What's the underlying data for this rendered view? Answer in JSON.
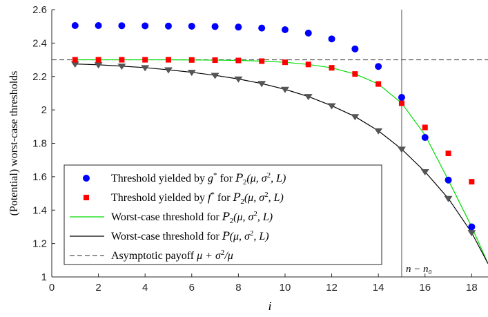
{
  "chart_data": {
    "type": "line",
    "xlabel": "i",
    "ylabel": "(Potential) worst-case thresholds",
    "xlim": [
      0,
      18.7
    ],
    "ylim": [
      1,
      2.6
    ],
    "xticks": [
      "0",
      "2",
      "4",
      "6",
      "8",
      "10",
      "12",
      "14",
      "16",
      "18"
    ],
    "yticks": [
      "1",
      "1.2",
      "1.4",
      "1.6",
      "1.8",
      "2",
      "2.2",
      "2.4",
      "2.6"
    ],
    "grid": false,
    "legend_position": "bottom-left",
    "vline": {
      "x": 15,
      "label": "n − n₀"
    },
    "hline": {
      "y": 2.3
    },
    "series": [
      {
        "name": "Threshold yielded by g* for P₂(μ, σ², L)",
        "marker": "circle",
        "color": "#0000ff",
        "x": [
          1,
          2,
          3,
          4,
          5,
          6,
          7,
          8,
          9,
          10,
          11,
          12,
          13,
          14,
          15,
          16,
          17,
          18
        ],
        "y": [
          2.505,
          2.505,
          2.504,
          2.503,
          2.502,
          2.501,
          2.499,
          2.496,
          2.49,
          2.48,
          2.46,
          2.425,
          2.365,
          2.26,
          2.075,
          1.835,
          1.58,
          1.3
        ]
      },
      {
        "name": "Threshold yielded by f* for P₂(μ, σ², L)",
        "marker": "square",
        "color": "#ff0000",
        "x": [
          1,
          2,
          3,
          4,
          5,
          6,
          7,
          8,
          9,
          10,
          11,
          12,
          13,
          14,
          15,
          16,
          17,
          18
        ],
        "y": [
          2.3,
          2.3,
          2.3,
          2.3,
          2.3,
          2.299,
          2.298,
          2.296,
          2.292,
          2.285,
          2.272,
          2.252,
          2.215,
          2.155,
          2.04,
          1.895,
          1.74,
          1.57
        ]
      },
      {
        "name": "Worst-case threshold for P₂(μ, σ², L)",
        "marker": "none",
        "color": "#00dd00",
        "x": [
          1,
          2,
          3,
          4,
          5,
          6,
          7,
          8,
          9,
          10,
          11,
          12,
          13,
          14,
          15,
          16,
          17,
          18,
          18.7
        ],
        "y": [
          2.3,
          2.3,
          2.3,
          2.3,
          2.3,
          2.299,
          2.298,
          2.296,
          2.292,
          2.285,
          2.272,
          2.252,
          2.215,
          2.155,
          2.04,
          1.85,
          1.58,
          1.3,
          1.08
        ]
      },
      {
        "name": "Worst-case threshold for P(μ, σ², L)",
        "marker": "triangle-down",
        "color": "#000000",
        "marker_color": "#555555",
        "x": [
          1,
          2,
          3,
          4,
          5,
          6,
          7,
          8,
          9,
          10,
          11,
          12,
          13,
          14,
          15,
          16,
          17,
          18,
          18.7
        ],
        "y": [
          2.275,
          2.27,
          2.262,
          2.253,
          2.24,
          2.225,
          2.207,
          2.185,
          2.158,
          2.123,
          2.08,
          2.025,
          1.96,
          1.875,
          1.765,
          1.63,
          1.47,
          1.265,
          1.08
        ]
      },
      {
        "name": "Asymptotic payoff μ + σ²/μ",
        "marker": "none",
        "color": "#555555",
        "dashed": true
      }
    ]
  },
  "legend": {
    "entries": [
      {
        "prefix": "Threshold yielded by ",
        "sym": "g",
        "sup": "*",
        "suffix": " for ",
        "math": "P",
        "sub": "2",
        "args": "(μ, σ",
        "sup2": "2",
        "tail": ", L)"
      },
      {
        "prefix": "Threshold yielded by ",
        "sym": "f",
        "sup": "*",
        "suffix": " for ",
        "math": "P",
        "sub": "2",
        "args": "(μ, σ",
        "sup2": "2",
        "tail": ", L)"
      },
      {
        "prefix": "Worst-case threshold for ",
        "sym": "",
        "sup": "",
        "suffix": "",
        "math": "P",
        "sub": "2",
        "args": "(μ, σ",
        "sup2": "2",
        "tail": ", L)"
      },
      {
        "prefix": "Worst-case threshold for ",
        "sym": "",
        "sup": "",
        "suffix": "",
        "math": "P",
        "sub": "",
        "args": "(μ, σ",
        "sup2": "2",
        "tail": ", L)"
      },
      {
        "prefix": "Asymptotic payoff ",
        "sym": "μ + σ",
        "sup": "2",
        "suffix": "/μ",
        "math": "",
        "sub": "",
        "args": "",
        "sup2": "",
        "tail": ""
      }
    ]
  }
}
